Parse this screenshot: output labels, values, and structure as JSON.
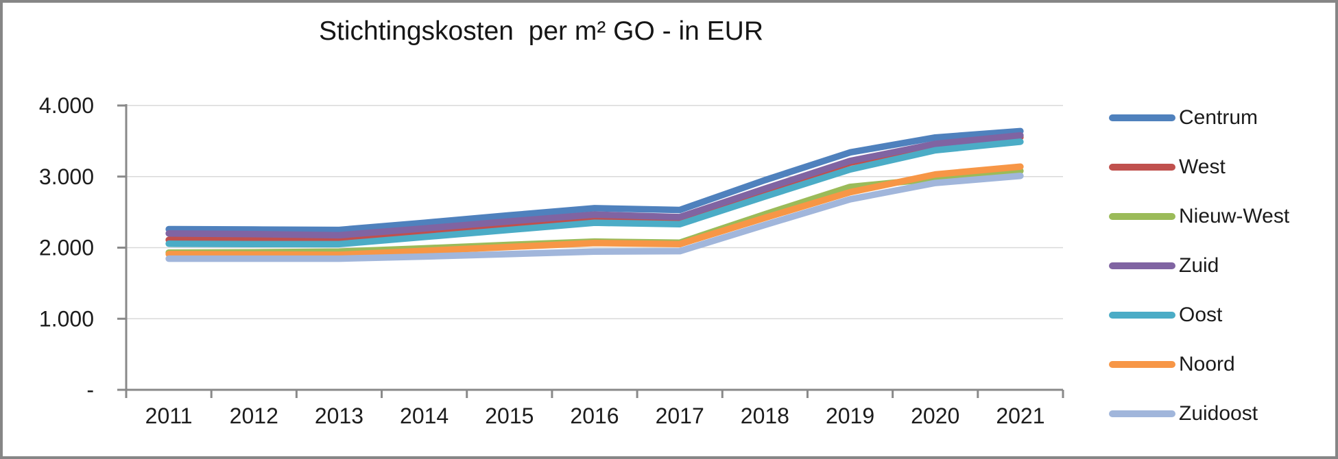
{
  "chart_data": {
    "type": "line",
    "title": "Stichtingskosten  per m² GO - in EUR",
    "categories": [
      "2011",
      "2012",
      "2013",
      "2014",
      "2015",
      "2016",
      "2017",
      "2018",
      "2019",
      "2020",
      "2021"
    ],
    "series": [
      {
        "name": "Centrum",
        "color": "#4F81BD",
        "values": [
          2260,
          2255,
          2250,
          2350,
          2455,
          2555,
          2530,
          2950,
          3340,
          3550,
          3640
        ]
      },
      {
        "name": "West",
        "color": "#C0504D",
        "values": [
          2110,
          2105,
          2100,
          2215,
          2325,
          2435,
          2405,
          2800,
          3195,
          3435,
          3555
        ]
      },
      {
        "name": "Nieuw-West",
        "color": "#9BBB59",
        "values": [
          1930,
          1935,
          1945,
          1990,
          2040,
          2085,
          2070,
          2470,
          2855,
          2970,
          3080
        ]
      },
      {
        "name": "Zuid",
        "color": "#8064A2",
        "values": [
          2200,
          2190,
          2175,
          2270,
          2370,
          2465,
          2430,
          2830,
          3220,
          3460,
          3580
        ]
      },
      {
        "name": "Oost",
        "color": "#4BACC6",
        "values": [
          2055,
          2050,
          2050,
          2150,
          2250,
          2350,
          2330,
          2720,
          3100,
          3370,
          3490
        ]
      },
      {
        "name": "Noord",
        "color": "#F79646",
        "values": [
          1910,
          1905,
          1900,
          1955,
          2010,
          2065,
          2050,
          2420,
          2780,
          3030,
          3140
        ]
      },
      {
        "name": "Zuidoost",
        "color": "#A1B6DB",
        "values": [
          1845,
          1845,
          1845,
          1875,
          1910,
          1945,
          1950,
          2320,
          2680,
          2910,
          3010
        ]
      }
    ],
    "y_axis": {
      "ticks": [
        "-",
        "1.000",
        "2.000",
        "3.000",
        "4.000"
      ],
      "values": [
        0,
        1000,
        2000,
        3000,
        4000
      ],
      "ylim": [
        0,
        4000
      ]
    },
    "xlabel": "",
    "ylabel": "",
    "grid": true,
    "legend_position": "right",
    "styles": {
      "gridline_color": "#D9D9D9",
      "axis_color": "#898989",
      "text_color": "#1c1c1c"
    }
  }
}
